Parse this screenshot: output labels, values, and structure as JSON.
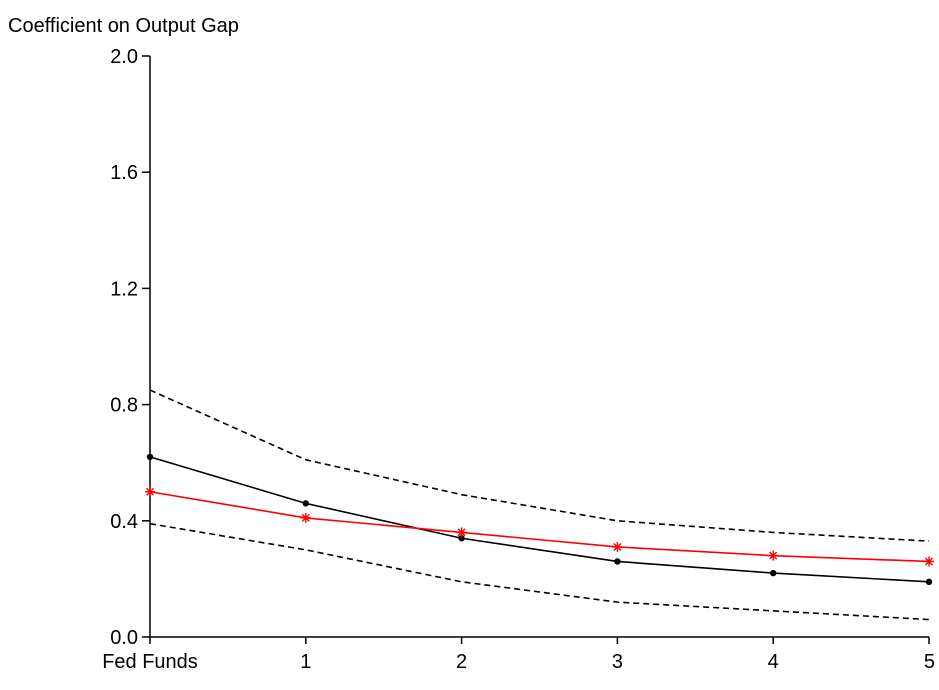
{
  "chart_data": {
    "type": "line",
    "title": "Coefficient on Output Gap",
    "xlabel": "",
    "ylabel": "",
    "categories": [
      "Fed Funds",
      "1",
      "2",
      "3",
      "4",
      "5"
    ],
    "y_ticks": [
      "0.0",
      "0.4",
      "0.8",
      "1.2",
      "1.6",
      "2.0"
    ],
    "ylim": [
      0.0,
      2.0
    ],
    "grid": false,
    "legend": "none",
    "series": [
      {
        "values": [
          0.62,
          0.46,
          0.34,
          0.26,
          0.22,
          0.19
        ],
        "color": "#000000",
        "style": "solid",
        "marker": "dot"
      },
      {
        "values": [
          0.85,
          0.61,
          0.49,
          0.4,
          0.36,
          0.33
        ],
        "color": "#000000",
        "style": "dashed",
        "marker": "none"
      },
      {
        "values": [
          0.39,
          0.3,
          0.19,
          0.12,
          0.09,
          0.06
        ],
        "color": "#000000",
        "style": "dashed",
        "marker": "none"
      },
      {
        "values": [
          0.5,
          0.41,
          0.36,
          0.31,
          0.28,
          0.26
        ],
        "color": "#ff0000",
        "style": "solid",
        "marker": "asterisk"
      }
    ]
  }
}
